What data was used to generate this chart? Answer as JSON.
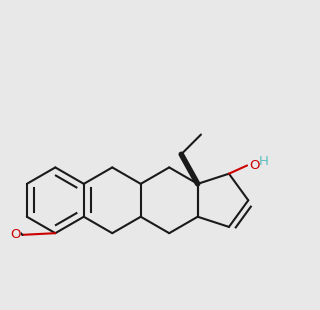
{
  "bg": "#e8e8e8",
  "bc": "#1a1a1a",
  "oc": "#cc0000",
  "hc": "#5bbfbf",
  "lw": 1.5,
  "blw": 4.0,
  "atoms": {
    "note": "All atom coords in local space, y-up. Scale=36, origin=(150,195)"
  }
}
